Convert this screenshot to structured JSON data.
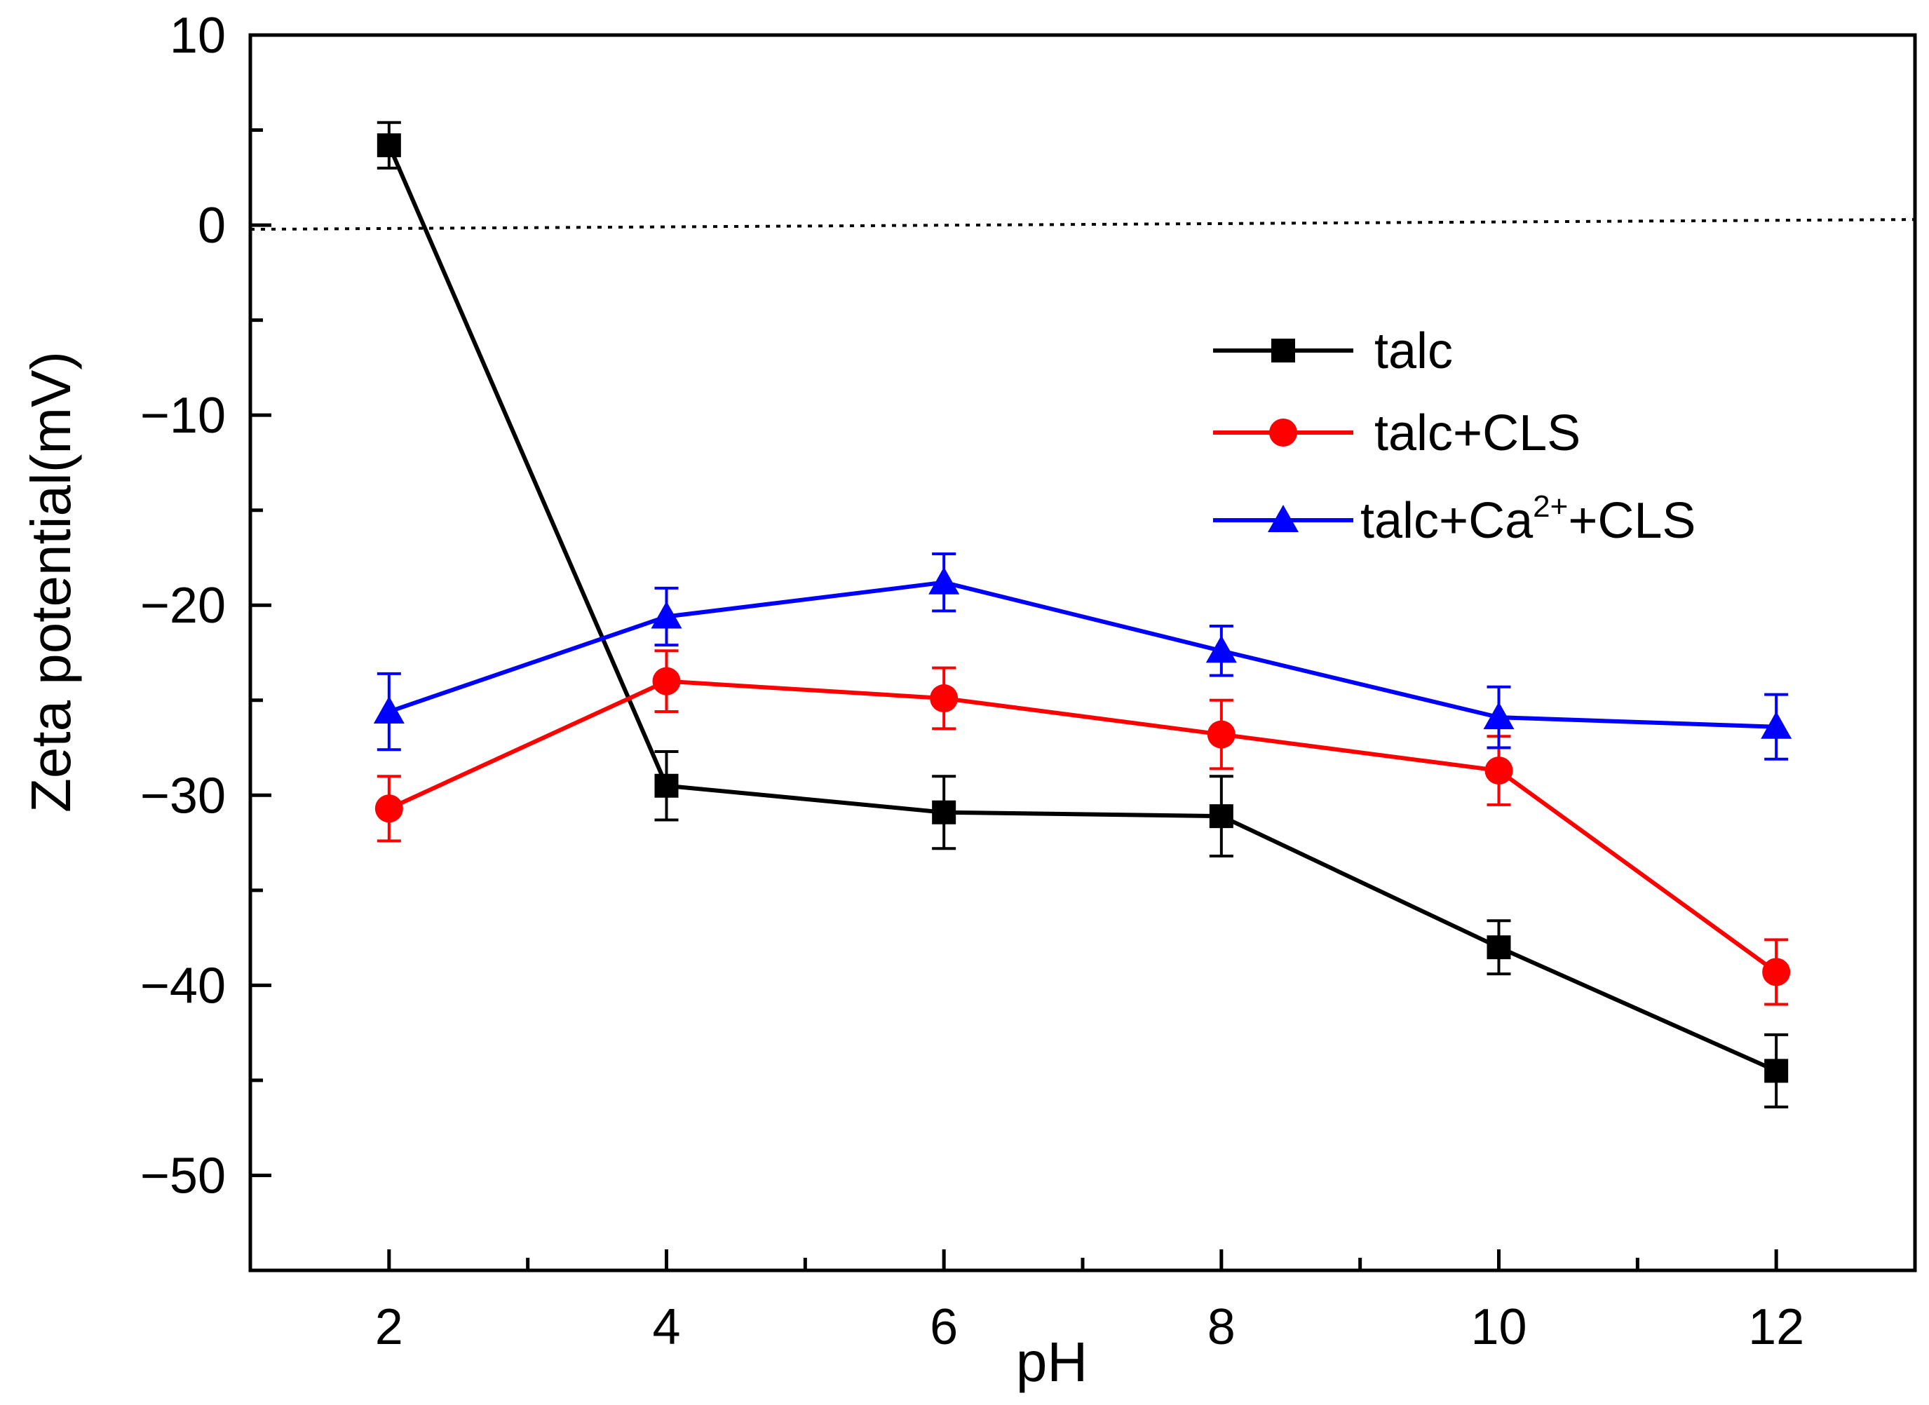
{
  "chart_data": {
    "type": "line",
    "title": "",
    "xlabel": "pH",
    "ylabel": "Zeta potential(mV)",
    "xlim": [
      1,
      13
    ],
    "ylim": [
      -55,
      10
    ],
    "x_ticks": [
      2,
      4,
      6,
      8,
      10,
      12
    ],
    "x_tick_labels": [
      "2",
      "4",
      "6",
      "8",
      "10",
      "12"
    ],
    "y_ticks": [
      10,
      0,
      -10,
      -20,
      -30,
      -40,
      -50
    ],
    "y_tick_labels": [
      "10",
      "0",
      "−10",
      "−20",
      "−30",
      "−40",
      "−50"
    ],
    "x": [
      2,
      4,
      6,
      8,
      10,
      12
    ],
    "reference_line": {
      "y": 0,
      "style": "dotted"
    },
    "legend_position": "upper-right",
    "series": [
      {
        "name": "talc",
        "legend_label": "talc",
        "color": "#000000",
        "marker": "square",
        "values": [
          4.2,
          -29.5,
          -30.9,
          -31.1,
          -38.0,
          -44.5
        ],
        "errors": [
          1.2,
          1.8,
          1.9,
          2.1,
          1.4,
          1.9
        ]
      },
      {
        "name": "talc+CLS",
        "legend_label": "talc+CLS",
        "color": "#ff0000",
        "marker": "circle",
        "values": [
          -30.7,
          -24.0,
          -24.9,
          -26.8,
          -28.7,
          -39.3
        ],
        "errors": [
          1.7,
          1.6,
          1.6,
          1.8,
          1.8,
          1.7
        ]
      },
      {
        "name": "talc+Ca²⁺+CLS",
        "legend_label": "talc+Ca",
        "legend_sup": "2+",
        "legend_suffix": "+CLS",
        "color": "#0000ff",
        "marker": "triangle",
        "values": [
          -25.6,
          -20.6,
          -18.8,
          -22.4,
          -25.9,
          -26.4
        ],
        "errors": [
          2.0,
          1.5,
          1.5,
          1.3,
          1.6,
          1.7
        ]
      }
    ]
  }
}
